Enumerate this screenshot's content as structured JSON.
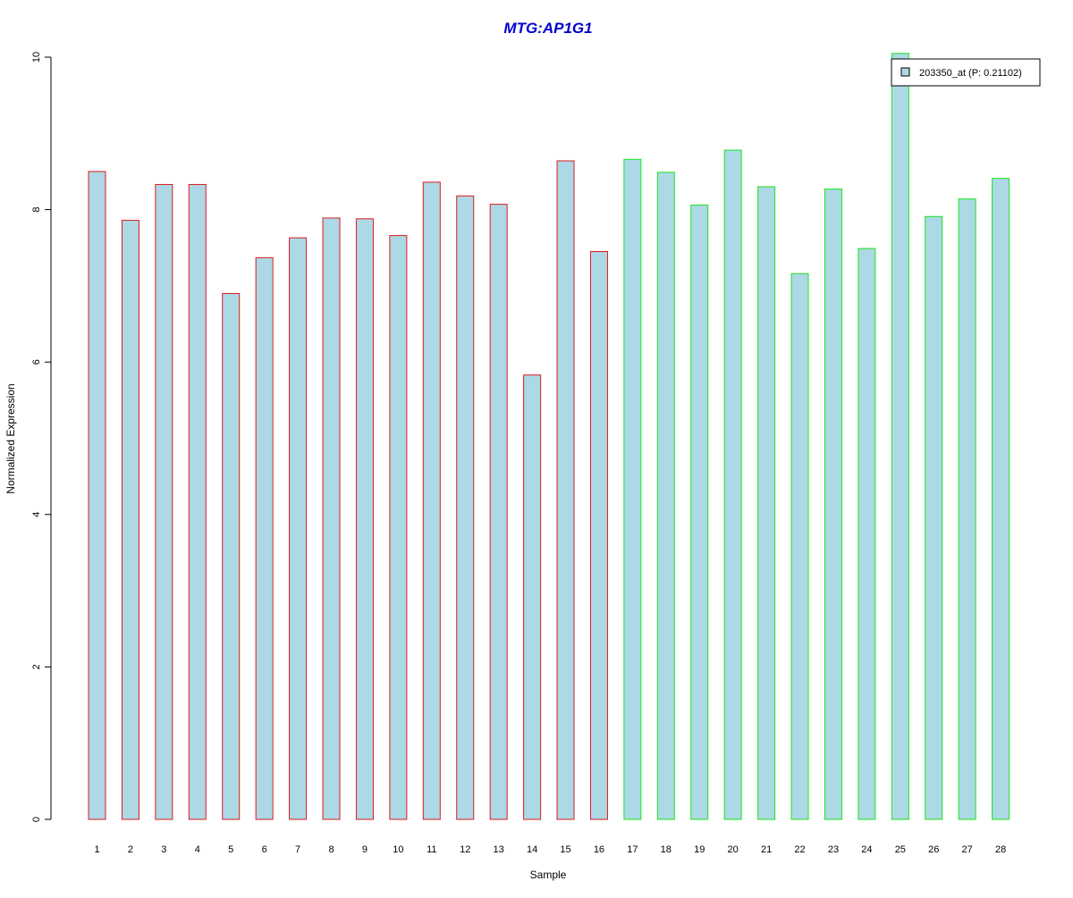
{
  "chart_data": {
    "type": "bar",
    "title": "MTG:AP1G1",
    "xlabel": "Sample",
    "ylabel": "Normalized Expression",
    "ylim": [
      0,
      10
    ],
    "yticks": [
      "0",
      "2",
      "4",
      "6",
      "8",
      "10"
    ],
    "categories": [
      "1",
      "2",
      "3",
      "4",
      "5",
      "6",
      "7",
      "8",
      "9",
      "10",
      "11",
      "12",
      "13",
      "14",
      "15",
      "16",
      "17",
      "18",
      "19",
      "20",
      "21",
      "22",
      "23",
      "24",
      "25",
      "26",
      "27",
      "28"
    ],
    "series": [
      {
        "name": "203350_at (P: 0.21102)",
        "values": [
          8.5,
          7.86,
          8.33,
          8.33,
          6.9,
          7.37,
          7.63,
          7.89,
          7.88,
          7.66,
          8.36,
          8.18,
          8.07,
          5.83,
          8.64,
          7.45,
          8.66,
          8.49,
          8.06,
          8.78,
          8.3,
          7.16,
          8.27,
          7.49,
          10.05,
          7.91,
          8.14,
          8.41
        ]
      }
    ],
    "groups": [
      {
        "from": 1,
        "to": 16,
        "border_color": "#e0191c"
      },
      {
        "from": 17,
        "to": 28,
        "border_color": "#19e619"
      }
    ],
    "bar_fill": "#add8e6",
    "title_color": "#0000cd",
    "legend_position": "top-right",
    "grid": false
  }
}
